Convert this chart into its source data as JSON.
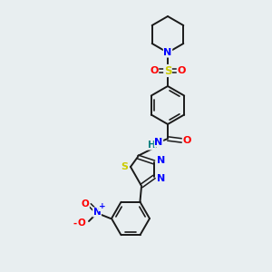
{
  "bg_color": "#e8eef0",
  "bond_color": "#1a1a1a",
  "atom_colors": {
    "N": "#0000ff",
    "O": "#ff0000",
    "S": "#cccc00",
    "H": "#008080"
  },
  "figsize": [
    3.0,
    3.0
  ],
  "dpi": 100
}
